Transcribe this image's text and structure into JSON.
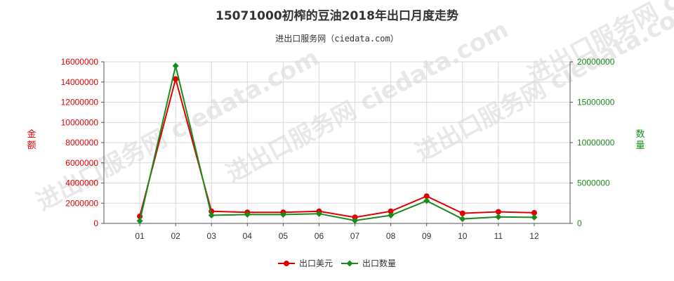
{
  "chart_data": {
    "type": "line",
    "title": "15071000初榨的豆油2018年出口月度走势",
    "subtitle": "进出口服务网（ciedata.com）",
    "watermark": "进出口服务网 ciedata.com",
    "categories": [
      "01",
      "02",
      "03",
      "04",
      "05",
      "06",
      "07",
      "08",
      "09",
      "10",
      "11",
      "12"
    ],
    "y_left": {
      "label": "金额",
      "range": [
        0,
        16000000
      ],
      "ticks": [
        "0",
        "2000000",
        "4000000",
        "6000000",
        "8000000",
        "10000000",
        "12000000",
        "14000000",
        "16000000"
      ],
      "color": "#e00000"
    },
    "y_right": {
      "label": "数量",
      "range": [
        0,
        20000000
      ],
      "ticks": [
        "0",
        "5000000",
        "10000000",
        "15000000",
        "20000000"
      ],
      "color": "#1a8a1a"
    },
    "series": [
      {
        "name": "出口美元",
        "axis": "left",
        "color": "#e00000",
        "marker": "circle",
        "values": [
          700000,
          14300000,
          1200000,
          1100000,
          1100000,
          1200000,
          600000,
          1200000,
          2700000,
          1000000,
          1150000,
          1050000
        ]
      },
      {
        "name": "出口数量",
        "axis": "right",
        "color": "#1a8a1a",
        "marker": "diamond",
        "values": [
          300000,
          19500000,
          1000000,
          1100000,
          1100000,
          1200000,
          350000,
          1000000,
          2800000,
          550000,
          800000,
          750000
        ]
      }
    ],
    "grid": true,
    "legend_position": "bottom-center"
  }
}
